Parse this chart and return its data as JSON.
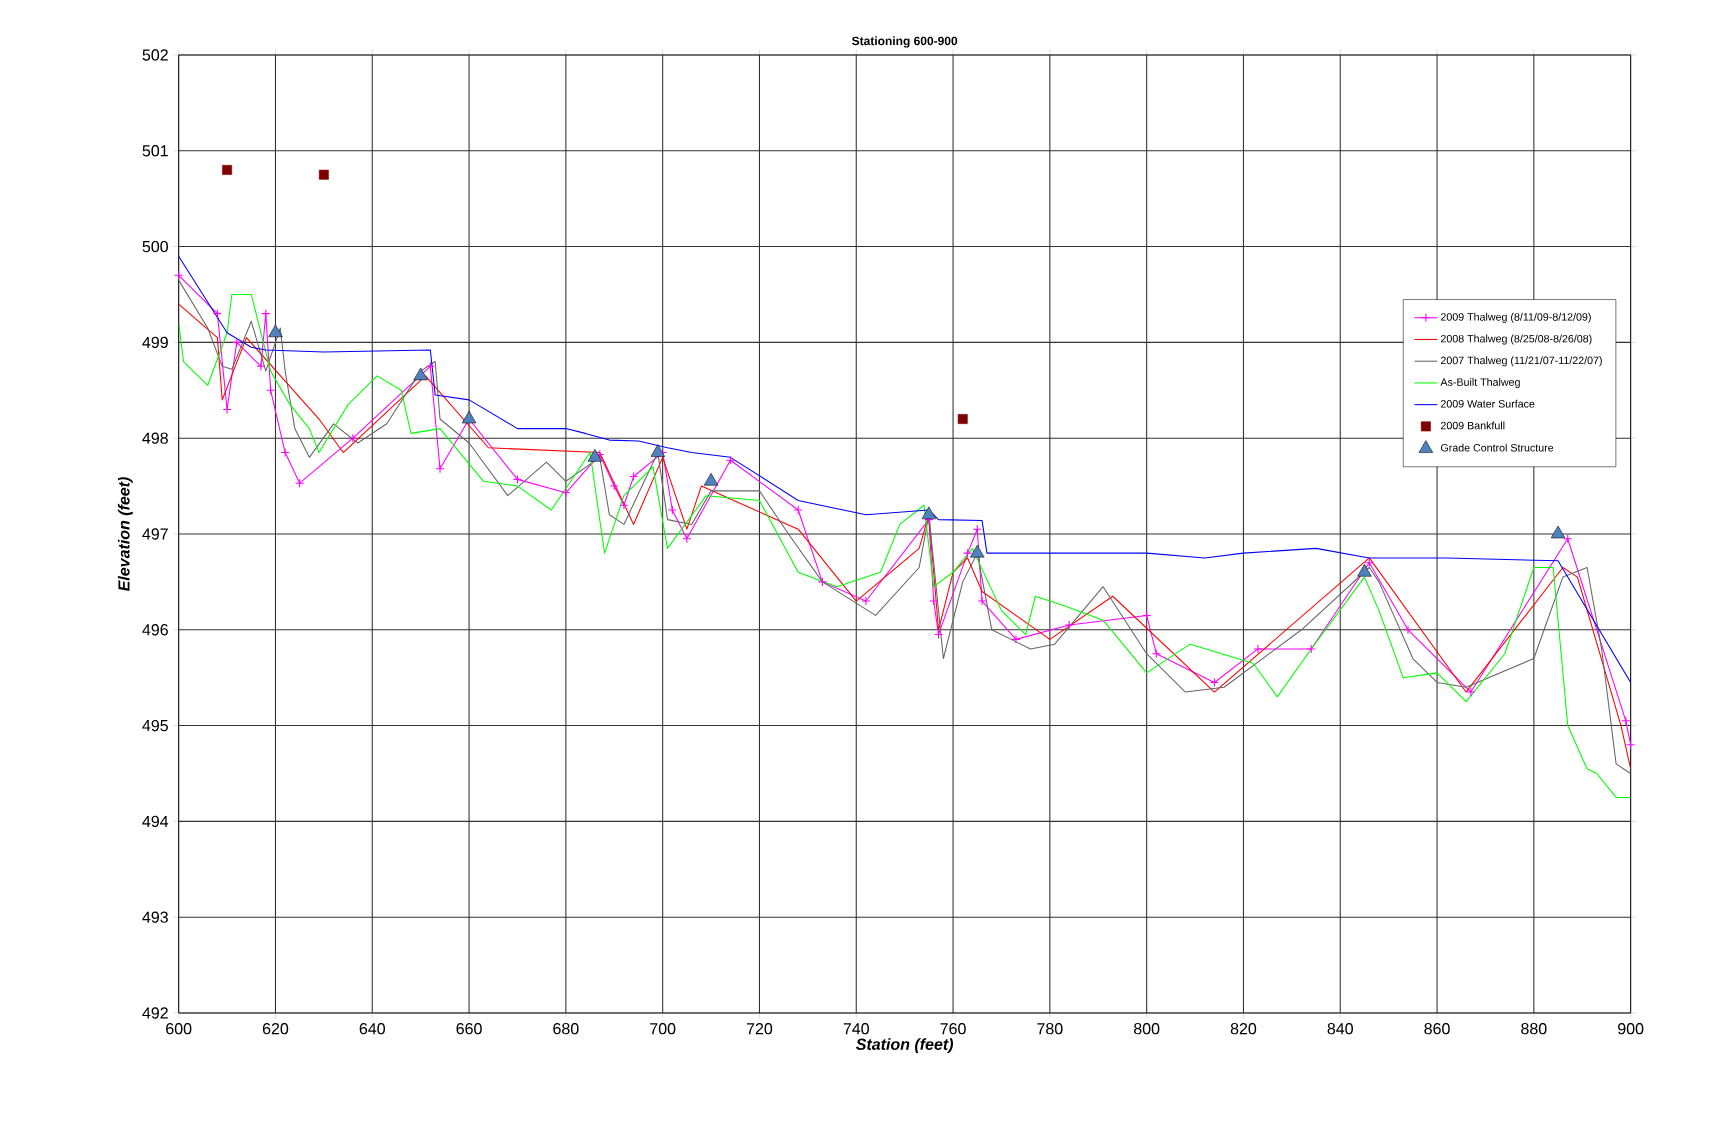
{
  "chart_data": {
    "type": "line",
    "title": "Stationing 600-900",
    "xlabel": "Station (feet)",
    "ylabel": "Elevation (feet)",
    "xlim": [
      600,
      900
    ],
    "ylim": [
      492,
      502
    ],
    "xticks": [
      600,
      620,
      640,
      660,
      680,
      700,
      720,
      740,
      760,
      780,
      800,
      820,
      840,
      860,
      880,
      900
    ],
    "yticks": [
      492,
      493,
      494,
      495,
      496,
      497,
      498,
      499,
      500,
      501,
      502
    ],
    "grid": true,
    "legend": "right",
    "line_style": "solid",
    "series": [
      {
        "name": "2009 Thalweg (8/11/09-8/12/09)",
        "color": "#ff00ff",
        "marker": "cross",
        "x": [
          600,
          608,
          610,
          612,
          617,
          618,
          619,
          622,
          625,
          636,
          652,
          654,
          660,
          670,
          680,
          687,
          690,
          692,
          694,
          700,
          702,
          705,
          714,
          728,
          733,
          742,
          755,
          756,
          757,
          763,
          765,
          766,
          773,
          784,
          800,
          802,
          814,
          823,
          834,
          846,
          854,
          867,
          887,
          899,
          900
        ],
        "values": [
          499.7,
          499.3,
          498.3,
          499.0,
          498.75,
          499.3,
          498.5,
          497.85,
          497.53,
          498.0,
          498.75,
          497.68,
          498.2,
          497.57,
          497.43,
          497.83,
          497.5,
          497.3,
          497.6,
          497.85,
          497.25,
          496.95,
          497.77,
          497.25,
          496.5,
          496.3,
          497.15,
          496.3,
          495.95,
          496.8,
          497.05,
          496.3,
          495.9,
          496.05,
          496.15,
          495.75,
          495.45,
          495.8,
          495.8,
          496.7,
          496.0,
          495.35,
          496.95,
          495.05,
          494.8
        ]
      },
      {
        "name": "2008 Thalweg (8/25/08-8/26/08)",
        "color": "#ff0000",
        "marker": "none",
        "x": [
          600,
          608,
          609,
          614,
          629,
          634,
          651,
          664,
          687,
          694,
          700,
          705,
          708,
          728,
          740,
          753,
          755,
          757,
          760,
          763,
          766,
          780,
          793,
          814,
          846,
          866,
          886,
          889,
          898,
          900
        ],
        "values": [
          499.4,
          499.05,
          498.4,
          499.05,
          498.2,
          497.85,
          498.65,
          497.9,
          497.85,
          497.1,
          497.8,
          497.05,
          497.5,
          497.05,
          496.3,
          496.85,
          497.2,
          496.0,
          496.6,
          496.75,
          496.4,
          495.9,
          496.35,
          495.35,
          496.75,
          495.35,
          496.65,
          496.55,
          495.0,
          494.55
        ]
      },
      {
        "name": "2007 Thalweg (11/21/07-11/22/07)",
        "color": "#666666",
        "marker": "none",
        "x": [
          600,
          606,
          609,
          611,
          615,
          618,
          621,
          622,
          624,
          627,
          632,
          637,
          643,
          650,
          653,
          654,
          660,
          668,
          676,
          680,
          687,
          689,
          692,
          699,
          701,
          706,
          710,
          720,
          726,
          733,
          744,
          753,
          755,
          758,
          762,
          765,
          768,
          776,
          781,
          791,
          800,
          808,
          816,
          832,
          846,
          848,
          855,
          860,
          866,
          880,
          886,
          891,
          894,
          897,
          900
        ],
        "values": [
          499.65,
          499.15,
          498.75,
          498.72,
          499.22,
          498.7,
          499.15,
          498.7,
          498.1,
          497.8,
          498.15,
          497.95,
          498.15,
          498.7,
          498.8,
          498.2,
          497.95,
          497.4,
          497.75,
          497.55,
          497.8,
          497.2,
          497.1,
          497.85,
          497.15,
          497.1,
          497.45,
          497.45,
          497.0,
          496.5,
          496.15,
          496.65,
          497.2,
          495.7,
          496.5,
          496.8,
          496.0,
          495.8,
          495.85,
          496.45,
          495.75,
          495.35,
          495.4,
          496.0,
          496.65,
          496.5,
          495.7,
          495.45,
          495.4,
          495.7,
          496.55,
          496.65,
          495.8,
          494.6,
          494.5
        ]
      },
      {
        "name": "As-Built Thalweg",
        "color": "#00ff00",
        "marker": "none",
        "x": [
          600,
          601,
          606,
          610,
          611,
          615,
          619,
          623,
          627,
          629,
          635,
          641,
          646,
          648,
          654,
          663,
          670,
          677,
          685,
          688,
          692,
          698,
          701,
          709,
          720,
          728,
          736,
          745,
          749,
          754,
          756,
          760,
          764,
          770,
          775,
          777,
          783,
          791,
          800,
          809,
          822,
          827,
          834,
          845,
          848,
          853,
          860,
          866,
          874,
          880,
          884,
          887,
          891,
          893,
          897,
          900
        ],
        "values": [
          499.2,
          498.8,
          498.55,
          499.1,
          499.5,
          499.5,
          498.7,
          498.35,
          498.1,
          497.85,
          498.35,
          498.65,
          498.5,
          498.05,
          498.1,
          497.55,
          497.5,
          497.25,
          497.85,
          496.8,
          497.4,
          497.7,
          496.85,
          497.4,
          497.35,
          496.6,
          496.45,
          496.6,
          497.1,
          497.3,
          496.45,
          496.6,
          496.85,
          496.2,
          495.95,
          496.35,
          496.25,
          496.1,
          495.55,
          495.85,
          495.65,
          495.3,
          495.8,
          496.55,
          496.2,
          495.5,
          495.55,
          495.25,
          495.75,
          496.65,
          496.65,
          495.0,
          494.55,
          494.5,
          494.25,
          494.25
        ]
      },
      {
        "name": "2009 Water Surface",
        "color": "#0000ff",
        "marker": "none",
        "x": [
          600,
          610,
          615,
          618,
          630,
          652,
          653,
          660,
          670,
          680,
          684,
          689,
          695,
          701,
          706,
          714,
          728,
          742,
          755,
          757,
          766,
          767,
          780,
          800,
          812,
          820,
          835,
          846,
          862,
          885,
          900
        ],
        "values": [
          499.9,
          499.1,
          498.95,
          498.92,
          498.9,
          498.92,
          498.45,
          498.4,
          498.1,
          498.1,
          498.05,
          497.98,
          497.97,
          497.9,
          497.85,
          497.8,
          497.35,
          497.2,
          497.25,
          497.15,
          497.14,
          496.8,
          496.8,
          496.8,
          496.75,
          496.8,
          496.85,
          496.75,
          496.75,
          496.72,
          495.45
        ]
      },
      {
        "name": "2009 Bankfull",
        "type": "scatter",
        "color": "#800000",
        "marker": "square",
        "x": [
          610,
          630,
          762
        ],
        "values": [
          500.8,
          500.75,
          498.2
        ]
      },
      {
        "name": "Grade Control Structure",
        "type": "scatter",
        "color": "#4f81bd",
        "marker": "triangle",
        "x": [
          620,
          650,
          660,
          686,
          699,
          710,
          755,
          765,
          845,
          885
        ],
        "values": [
          499.1,
          498.65,
          498.2,
          497.8,
          497.85,
          497.55,
          497.2,
          496.8,
          496.6,
          497.0
        ]
      }
    ]
  }
}
